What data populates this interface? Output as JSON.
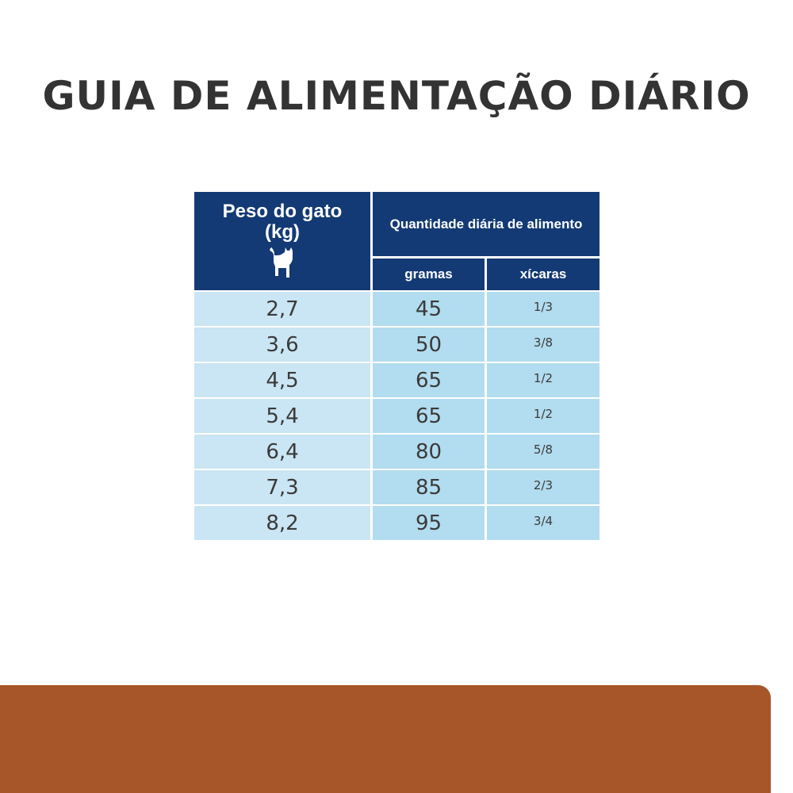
{
  "title": "GUIA DE ALIMENTAÇÃO DIÁRIO",
  "table": {
    "weight_header": "Peso do gato (kg)",
    "weight_header_line1": "Peso do gato",
    "weight_header_line2": "(kg)",
    "amount_header": "Quantidade diária de alimento",
    "grams_header": "gramas",
    "cups_header": "xícaras",
    "rows": [
      {
        "weight": "2,7",
        "grams": "45",
        "cups": "1/3"
      },
      {
        "weight": "3,6",
        "grams": "50",
        "cups": "3/8"
      },
      {
        "weight": "4,5",
        "grams": "65",
        "cups": "1/2"
      },
      {
        "weight": "5,4",
        "grams": "65",
        "cups": "1/2"
      },
      {
        "weight": "6,4",
        "grams": "80",
        "cups": "5/8"
      },
      {
        "weight": "7,3",
        "grams": "85",
        "cups": "2/3"
      },
      {
        "weight": "8,2",
        "grams": "95",
        "cups": "3/4"
      }
    ]
  },
  "colors": {
    "header": "#133a74",
    "weight_cell": "#cae5f3",
    "amount_cell": "#b2dcef",
    "band": "#a65628"
  }
}
